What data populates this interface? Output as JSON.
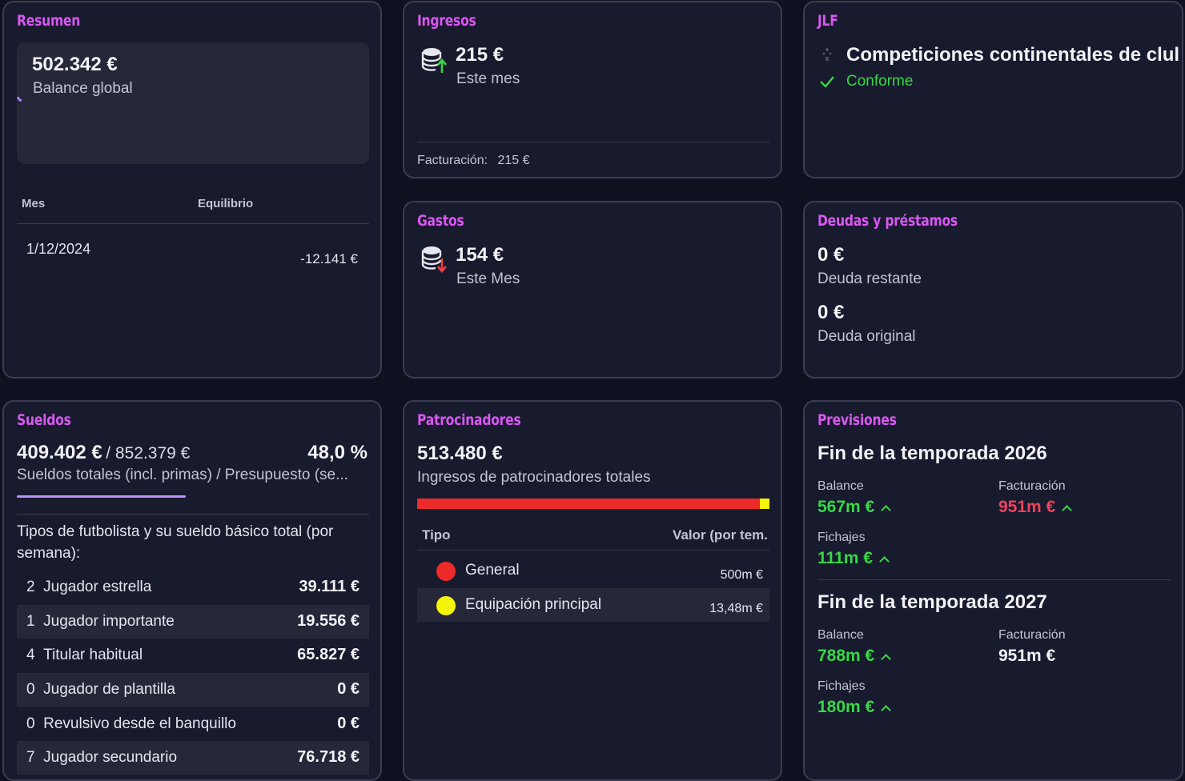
{
  "resumen": {
    "title": "Resumen",
    "balance": "502.342 €",
    "balance_label": "Balance global",
    "col_month": "Mes",
    "col_balance": "Equilibrio",
    "rows": [
      {
        "month": "1/12/2024",
        "value": "-12.141 €"
      }
    ]
  },
  "ingresos": {
    "title": "Ingresos",
    "amount": "215 €",
    "period": "Este mes",
    "footer_label": "Facturación:",
    "footer_value": "215 €"
  },
  "jlf": {
    "title": "JLF",
    "competition": "Competiciones continentales de clul",
    "status": "Conforme"
  },
  "gastos": {
    "title": "Gastos",
    "amount": "154 €",
    "period": "Este Mes"
  },
  "deudas": {
    "title": "Deudas y préstamos",
    "remaining": "0 €",
    "remaining_label": "Deuda restante",
    "original": "0 €",
    "original_label": "Deuda original"
  },
  "sueldos": {
    "title": "Sueldos",
    "total": "409.402 €",
    "budget": "/ 852.379 €",
    "percent": "48,0 %",
    "percent_value": 48.0,
    "caption": "Sueldos totales (incl. primas) / Presupuesto (se...",
    "types_heading": "Tipos de futbolista y su sueldo básico total (por semana):",
    "rows": [
      {
        "count": "2",
        "type": "Jugador estrella",
        "value": "39.111 €"
      },
      {
        "count": "1",
        "type": "Jugador importante",
        "value": "19.556 €"
      },
      {
        "count": "4",
        "type": "Titular habitual",
        "value": "65.827 €"
      },
      {
        "count": "0",
        "type": "Jugador de plantilla",
        "value": "0 €"
      },
      {
        "count": "0",
        "type": "Revulsivo desde el banquillo",
        "value": "0 €"
      },
      {
        "count": "7",
        "type": "Jugador secundario",
        "value": "76.718 €"
      }
    ],
    "accent_color": "#b892f7"
  },
  "patrocinadores": {
    "title": "Patrocinadores",
    "total": "513.480 €",
    "caption": "Ingresos de patrocinadores totales",
    "col_type": "Tipo",
    "col_value": "Valor (por tem.",
    "rows": [
      {
        "name": "General",
        "value": "500m €",
        "color": "#ee2b2b",
        "share": 0.9737
      },
      {
        "name": "Equipación principal",
        "value": "13,48m €",
        "color": "#f5f50a",
        "share": 0.0263
      }
    ]
  },
  "previsiones": {
    "title": "Previsiones",
    "seasons": [
      {
        "heading": "Fin de la temporada 2026",
        "balance_label": "Balance",
        "balance": "567m €",
        "balance_color": "green",
        "balance_trend": "up",
        "revenue_label": "Facturación",
        "revenue": "951m €",
        "revenue_color": "red",
        "revenue_trend": "up",
        "transfers_label": "Fichajes",
        "transfers": "111m €",
        "transfers_color": "green",
        "transfers_trend": "up"
      },
      {
        "heading": "Fin de la temporada 2027",
        "balance_label": "Balance",
        "balance": "788m €",
        "balance_color": "green",
        "balance_trend": "up",
        "revenue_label": "Facturación",
        "revenue": "951m €",
        "revenue_color": "white",
        "revenue_trend": "",
        "transfers_label": "Fichajes",
        "transfers": "180m €",
        "transfers_color": "green",
        "transfers_trend": "up"
      }
    ]
  }
}
